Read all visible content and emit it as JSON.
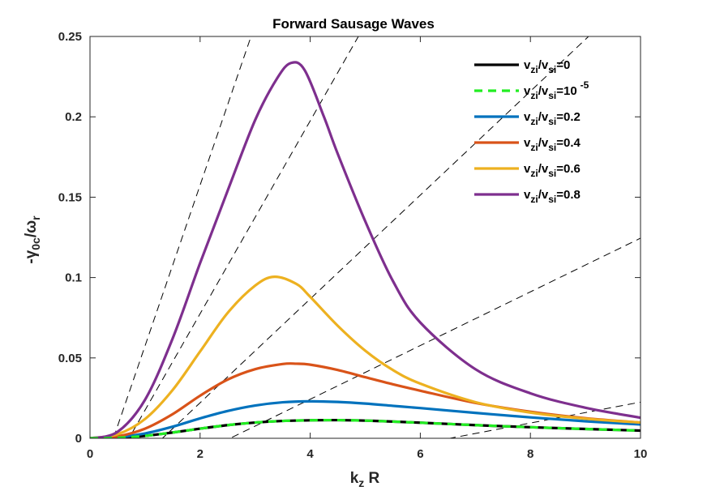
{
  "chart_data": {
    "type": "line",
    "title": "Forward Sausage Waves",
    "xlabel": {
      "main": "k",
      "sub": "z",
      "tail": " R"
    },
    "ylabel": {
      "pre": "-γ",
      "sub1": "0c",
      "mid": "/ω",
      "sub2": "r"
    },
    "xlim": [
      0,
      10
    ],
    "ylim": [
      0,
      0.25
    ],
    "xticks": [
      0,
      2,
      4,
      6,
      8,
      10
    ],
    "xtick_labels": [
      "0",
      "2",
      "4",
      "6",
      "8",
      "10"
    ],
    "yticks": [
      0,
      0.05,
      0.1,
      0.15,
      0.2,
      0.25
    ],
    "ytick_labels": [
      "0",
      "0.05",
      "0.1",
      "0.15",
      "0.2",
      "0.25"
    ],
    "grid": false,
    "legend_position": "top-right",
    "series": [
      {
        "name": "v_zi/v_si=0",
        "label_parts": [
          "v",
          "zi",
          "/v",
          "si",
          "=0",
          ""
        ],
        "color": "#000000",
        "style": "solid",
        "x": [
          0,
          0.5,
          1,
          1.5,
          2,
          2.5,
          3,
          3.5,
          4,
          4.5,
          5,
          5.5,
          6,
          7,
          8,
          9,
          10
        ],
        "y": [
          0,
          0.0003,
          0.0015,
          0.0036,
          0.006,
          0.0082,
          0.0098,
          0.0108,
          0.0112,
          0.0113,
          0.011,
          0.0104,
          0.0097,
          0.0082,
          0.0069,
          0.0058,
          0.0048
        ]
      },
      {
        "name": "v_zi/v_si=10^-5",
        "label_parts": [
          "v",
          "zi",
          "/v",
          "si",
          "=10",
          "-5"
        ],
        "color": "#22ee22",
        "style": "dashed",
        "x": [
          0,
          0.5,
          1,
          1.5,
          2,
          2.5,
          3,
          3.5,
          4,
          4.5,
          5,
          5.5,
          6,
          7,
          8,
          9,
          10
        ],
        "y": [
          0,
          0.0003,
          0.0015,
          0.0036,
          0.006,
          0.0082,
          0.0098,
          0.0108,
          0.0112,
          0.0113,
          0.011,
          0.0104,
          0.0097,
          0.0082,
          0.0069,
          0.0058,
          0.0048
        ]
      },
      {
        "name": "v_zi/v_si=0.2",
        "label_parts": [
          "v",
          "zi",
          "/v",
          "si",
          "=0.2",
          ""
        ],
        "color": "#0072bd",
        "style": "solid",
        "x": [
          0,
          0.5,
          1,
          1.5,
          2,
          2.5,
          3,
          3.5,
          4,
          4.5,
          5,
          5.5,
          6,
          7,
          8,
          9,
          10
        ],
        "y": [
          0,
          0.0006,
          0.003,
          0.0072,
          0.0124,
          0.017,
          0.0204,
          0.0224,
          0.023,
          0.0226,
          0.0216,
          0.0202,
          0.0188,
          0.0158,
          0.013,
          0.0106,
          0.0086
        ]
      },
      {
        "name": "v_zi/v_si=0.4",
        "label_parts": [
          "v",
          "zi",
          "/v",
          "si",
          "=0.4",
          ""
        ],
        "color": "#d95319",
        "style": "solid",
        "x": [
          0,
          0.5,
          1,
          1.5,
          2,
          2.5,
          3,
          3.5,
          3.75,
          4,
          4.5,
          5,
          5.5,
          6,
          7,
          8,
          9,
          10
        ],
        "y": [
          0,
          0.0012,
          0.006,
          0.015,
          0.0265,
          0.0365,
          0.043,
          0.0462,
          0.0464,
          0.0458,
          0.0425,
          0.038,
          0.0336,
          0.0296,
          0.022,
          0.0165,
          0.0125,
          0.0098
        ]
      },
      {
        "name": "v_zi/v_si=0.6",
        "label_parts": [
          "v",
          "zi",
          "/v",
          "si",
          "=0.6",
          ""
        ],
        "color": "#edb120",
        "style": "solid",
        "x": [
          0,
          0.5,
          1,
          1.5,
          2,
          2.5,
          3,
          3.35,
          3.75,
          4,
          4.5,
          5,
          5.5,
          6,
          7,
          8,
          9,
          10
        ],
        "y": [
          0,
          0.0025,
          0.012,
          0.03,
          0.054,
          0.078,
          0.095,
          0.1005,
          0.096,
          0.088,
          0.07,
          0.0545,
          0.0425,
          0.034,
          0.0225,
          0.016,
          0.0122,
          0.0098
        ]
      },
      {
        "name": "v_zi/v_si=0.8",
        "label_parts": [
          "v",
          "zi",
          "/v",
          "si",
          "=0.8",
          ""
        ],
        "color": "#7e2f8e",
        "style": "solid",
        "x": [
          0,
          0.5,
          1,
          1.5,
          2,
          2.5,
          3,
          3.4,
          3.65,
          3.9,
          4.25,
          4.5,
          5,
          5.5,
          6,
          7,
          8,
          9,
          10
        ],
        "y": [
          0,
          0.004,
          0.024,
          0.062,
          0.109,
          0.154,
          0.198,
          0.224,
          0.2335,
          0.229,
          0.2,
          0.177,
          0.135,
          0.098,
          0.072,
          0.043,
          0.028,
          0.019,
          0.0128
        ]
      }
    ],
    "reference_lines": {
      "style": "dashed",
      "color": "#000000",
      "slopes": [
        0.1,
        0.06,
        0.0323,
        0.0167,
        0.0065
      ],
      "origin": [
        0,
        -0.0425
      ]
    }
  }
}
